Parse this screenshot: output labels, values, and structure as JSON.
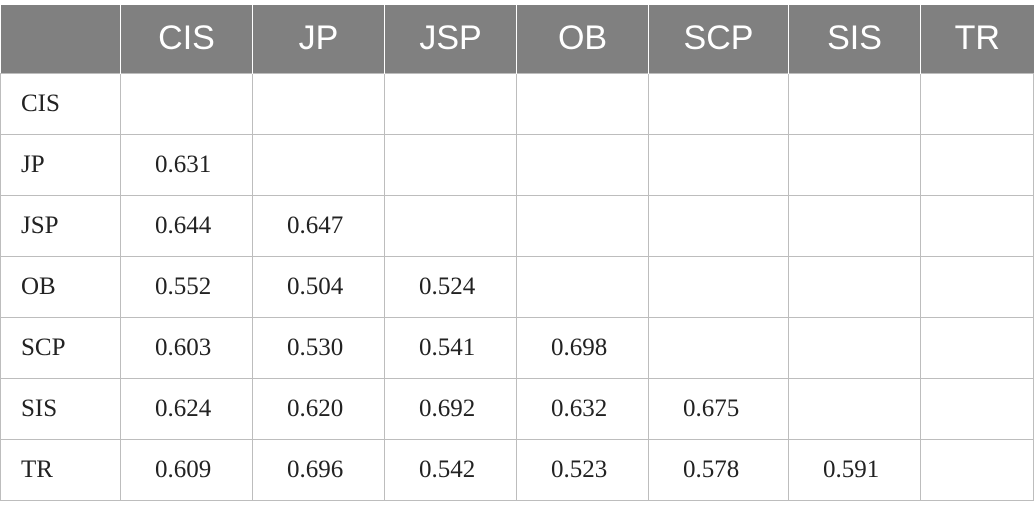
{
  "table": {
    "corner": "",
    "columns": [
      "CIS",
      "JP",
      "JSP",
      "OB",
      "SCP",
      "SIS",
      "TR"
    ],
    "rows": [
      {
        "label": "CIS",
        "cells": [
          "",
          "",
          "",
          "",
          "",
          "",
          ""
        ]
      },
      {
        "label": "JP",
        "cells": [
          "0.631",
          "",
          "",
          "",
          "",
          "",
          ""
        ]
      },
      {
        "label": "JSP",
        "cells": [
          "0.644",
          "0.647",
          "",
          "",
          "",
          "",
          ""
        ]
      },
      {
        "label": "OB",
        "cells": [
          "0.552",
          "0.504",
          "0.524",
          "",
          "",
          "",
          ""
        ]
      },
      {
        "label": "SCP",
        "cells": [
          "0.603",
          "0.530",
          "0.541",
          "0.698",
          "",
          "",
          ""
        ]
      },
      {
        "label": "SIS",
        "cells": [
          "0.624",
          "0.620",
          "0.692",
          "0.632",
          "0.675",
          "",
          ""
        ]
      },
      {
        "label": "TR",
        "cells": [
          "0.609",
          "0.696",
          "0.542",
          "0.523",
          "0.578",
          "0.591",
          ""
        ]
      }
    ]
  },
  "colors": {
    "header_bg": "#808080",
    "header_text": "#ffffff",
    "grid_line": "#bdbdbd",
    "body_text": "#222222"
  }
}
